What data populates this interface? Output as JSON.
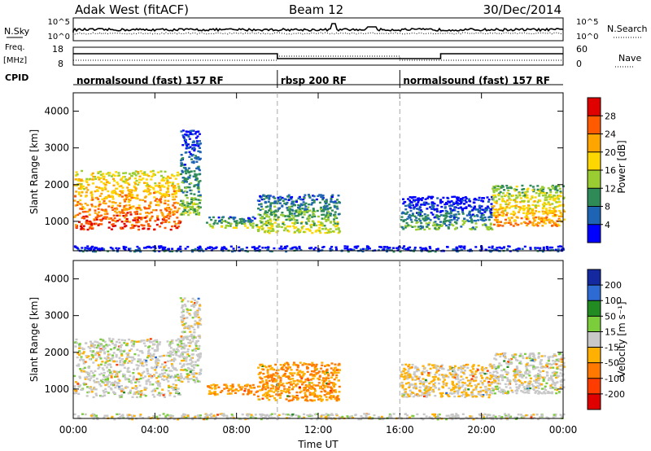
{
  "header": {
    "station": "Adak West (fitACF)",
    "beam": "Beam 12",
    "date": "30/Dec/2014"
  },
  "sky_panel": {
    "left_label": "N.Sky",
    "right_label": "N.Search",
    "ticks_left": [
      "10^5",
      "10^0"
    ],
    "ticks_right": [
      "10^5",
      "10^0"
    ]
  },
  "freq_panel": {
    "left_label": "Freq.",
    "left_unit": "[MHz]",
    "right_label": "Nave",
    "ticks_left": [
      "18",
      "8"
    ],
    "ticks_right": [
      "60",
      "0"
    ]
  },
  "cpid": {
    "label": "CPID",
    "segments": [
      {
        "start_h": 0,
        "end_h": 10,
        "text": "normalsound (fast) 157 RF"
      },
      {
        "start_h": 10,
        "end_h": 16,
        "text": "rbsp 200 RF"
      },
      {
        "start_h": 16,
        "end_h": 24,
        "text": "normalsound (fast) 157 RF"
      }
    ]
  },
  "power_scale": {
    "label": "Power [dB]",
    "ticks": [
      "28",
      "24",
      "20",
      "16",
      "12",
      "8",
      "4"
    ],
    "colors": [
      "#e00000",
      "#ff5a00",
      "#ffa500",
      "#ffd700",
      "#9acd32",
      "#2e8b57",
      "#1e64b4",
      "#0000ff"
    ]
  },
  "velocity_scale": {
    "label": "Velocity [m s⁻¹]",
    "ticks": [
      "200",
      "100",
      "50",
      "15",
      "-15",
      "-50",
      "-100",
      "-200"
    ],
    "colors": [
      "#1428a0",
      "#2d6bd2",
      "#228b22",
      "#7ccd3c",
      "#c8c8c8",
      "#ffb000",
      "#ff7800",
      "#ff3c00",
      "#e00000"
    ]
  },
  "chart_data": {
    "type": "heatmap",
    "xlabel": "Time UT",
    "ylabel": "Slant Range [km]",
    "x_ticks": [
      "00:00",
      "04:00",
      "08:00",
      "12:00",
      "16:00",
      "20:00",
      "00:00"
    ],
    "y_ticks": [
      "1000",
      "2000",
      "3000",
      "4000"
    ],
    "xlim_hours": [
      0,
      24
    ],
    "ylim_km": [
      200,
      4500
    ],
    "cpid_change_hours": [
      10,
      16
    ],
    "echo_regions": [
      {
        "start_h": 0.0,
        "end_h": 5.2,
        "range_km": [
          800,
          2400
        ],
        "power_db": 26,
        "velocity": 0
      },
      {
        "start_h": 5.2,
        "end_h": 6.2,
        "range_km": [
          1200,
          3500
        ],
        "power_db": 12,
        "velocity": 0
      },
      {
        "start_h": 6.5,
        "end_h": 9.0,
        "range_km": [
          850,
          1150
        ],
        "power_db": 14,
        "velocity": -50
      },
      {
        "start_h": 9.0,
        "end_h": 13.0,
        "range_km": [
          700,
          1750
        ],
        "power_db": 15,
        "velocity": -50
      },
      {
        "start_h": 16.0,
        "end_h": 20.5,
        "range_km": [
          800,
          1700
        ],
        "power_db": 10,
        "velocity": -15
      },
      {
        "start_h": 20.5,
        "end_h": 24.0,
        "range_km": [
          900,
          2000
        ],
        "power_db": 22,
        "velocity": 0
      },
      {
        "start_h": 0.0,
        "end_h": 24.0,
        "range_km": [
          200,
          350
        ],
        "power_db": 6,
        "velocity": 0
      }
    ]
  }
}
